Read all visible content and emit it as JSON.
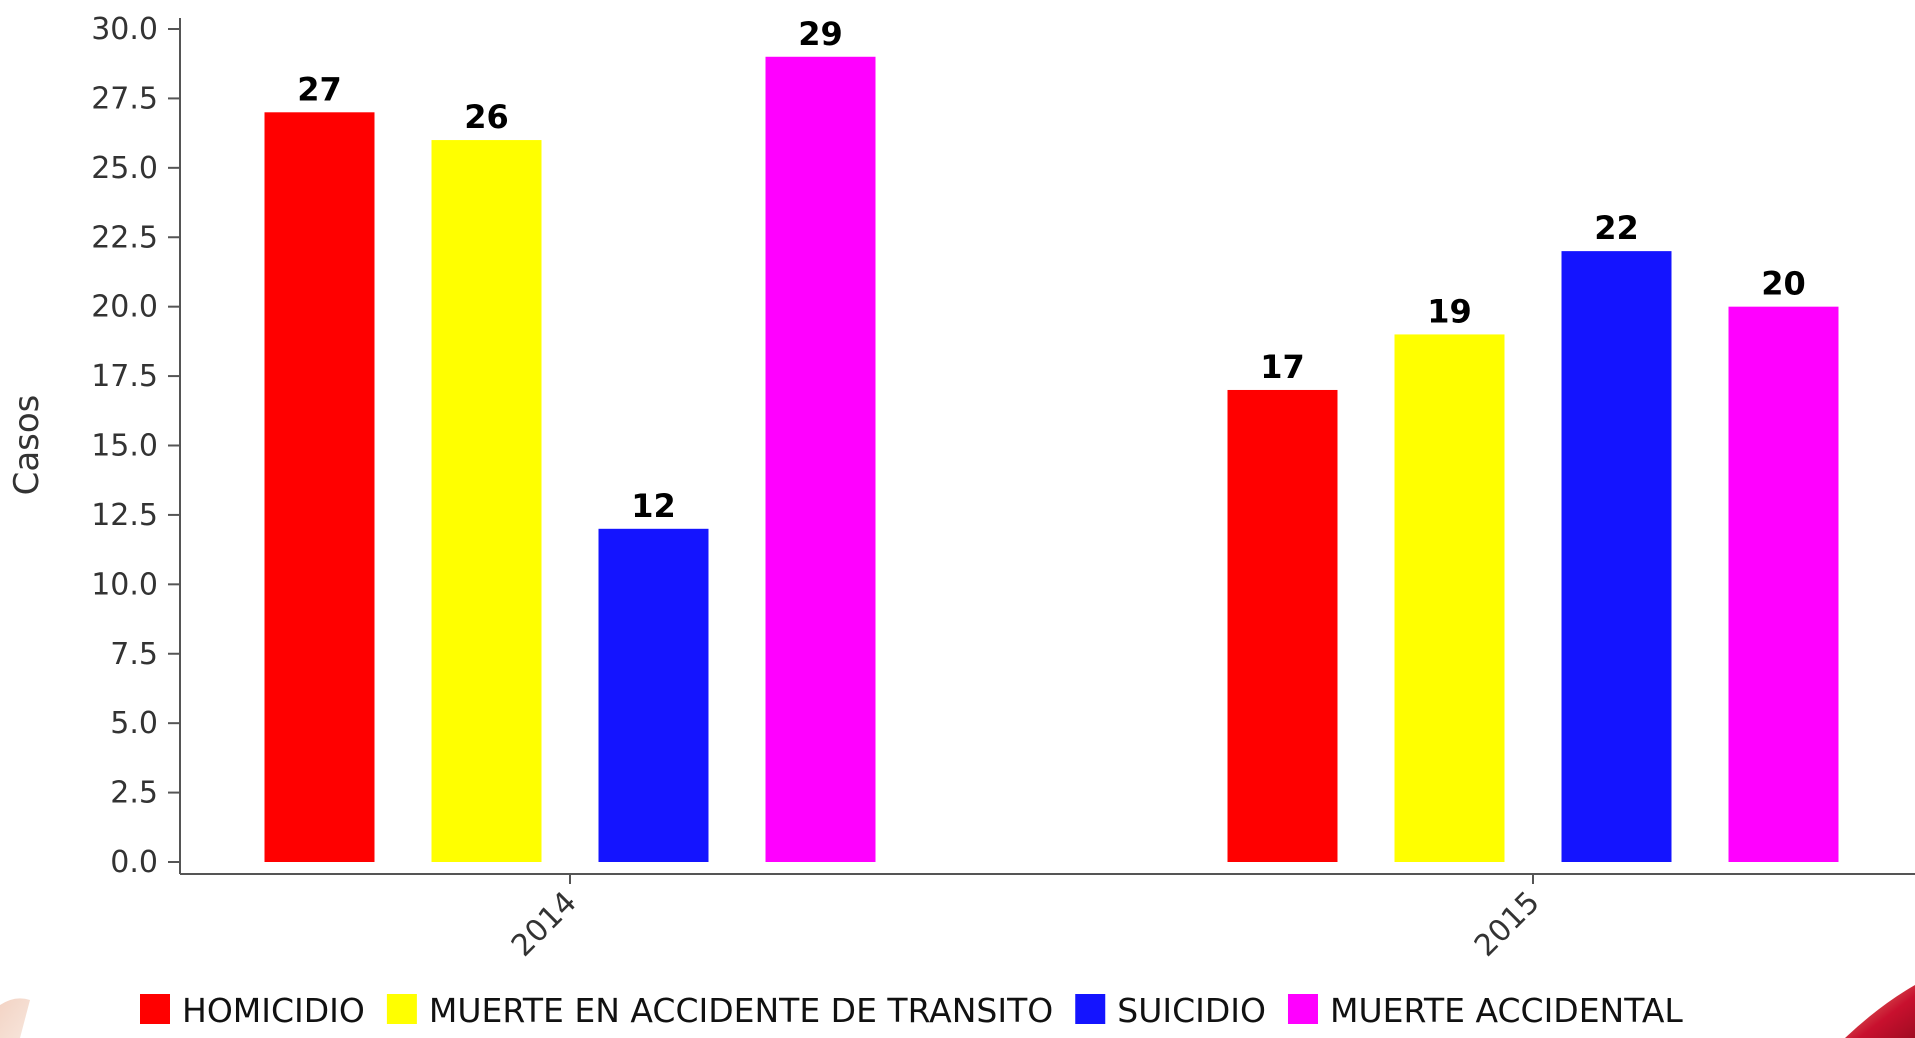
{
  "chart_data": {
    "type": "bar",
    "title": "",
    "xlabel": "",
    "ylabel": "Casos",
    "ylim": [
      0,
      30
    ],
    "y_ticks": [
      "0.0",
      "2.5",
      "5.0",
      "7.5",
      "10.0",
      "12.5",
      "15.0",
      "17.5",
      "20.0",
      "22.5",
      "25.0",
      "27.5",
      "30.0"
    ],
    "categories": [
      "2014",
      "2015"
    ],
    "series": [
      {
        "name": "HOMICIDIO",
        "color": "#ff0000",
        "values": [
          27,
          17
        ]
      },
      {
        "name": "MUERTE EN ACCIDENTE DE TRANSITO",
        "color": "#ffff00",
        "values": [
          26,
          19
        ]
      },
      {
        "name": "SUICIDIO",
        "color": "#1414ff",
        "values": [
          12,
          22
        ]
      },
      {
        "name": "MUERTE ACCIDENTAL",
        "color": "#ff00ff",
        "values": [
          29,
          20
        ]
      }
    ],
    "data_labels": true,
    "grid": false,
    "legend_position": "bottom"
  }
}
